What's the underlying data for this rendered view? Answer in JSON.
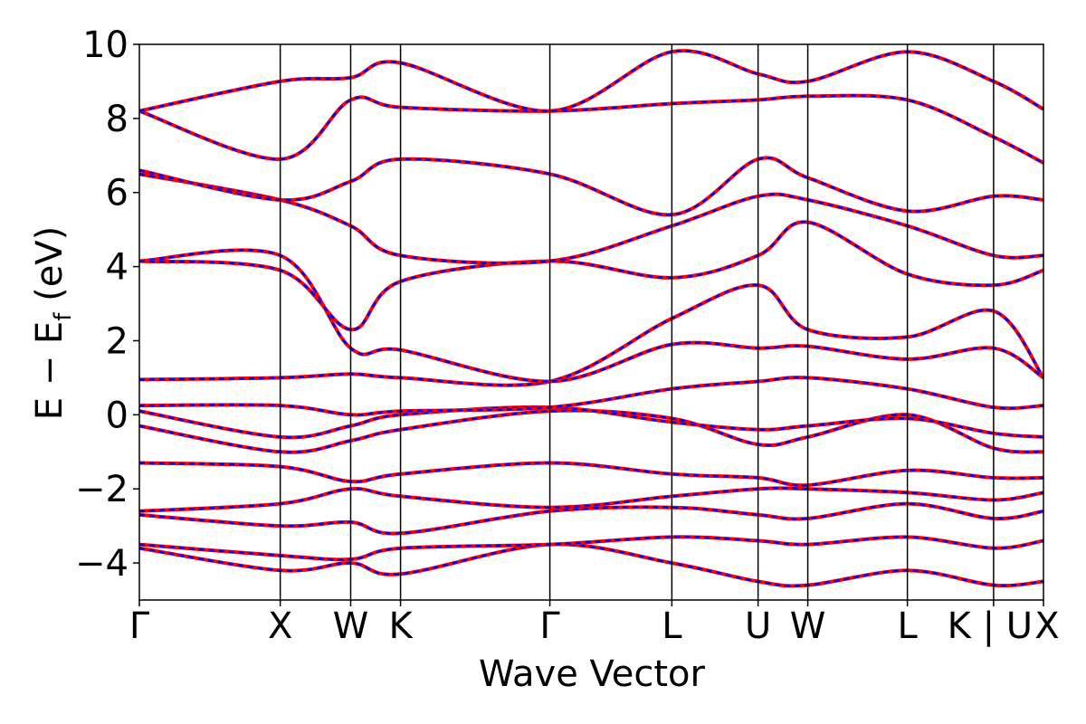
{
  "chart_data": {
    "type": "line",
    "title": "",
    "xlabel": "Wave Vector",
    "ylabel_parts": {
      "main": "E − E",
      "sub": "f",
      "unit": " (eV)"
    },
    "ylim": [
      -5,
      10
    ],
    "yticks": [
      -4,
      -2,
      0,
      2,
      4,
      6,
      8,
      10
    ],
    "ytick_labels": [
      "−4",
      "−2",
      "0",
      "2",
      "4",
      "6",
      "8",
      "10"
    ],
    "kpath": [
      {
        "label": "Γ",
        "x": 0.0
      },
      {
        "label": "X",
        "x": 1.0
      },
      {
        "label": "W",
        "x": 1.5
      },
      {
        "label": "K",
        "x": 1.854
      },
      {
        "label": "Γ",
        "x": 2.914
      },
      {
        "label": "L",
        "x": 3.78
      },
      {
        "label": "U",
        "x": 4.392
      },
      {
        "label": "W",
        "x": 4.745
      },
      {
        "label": "L",
        "x": 5.452
      },
      {
        "label": "K | U",
        "x": 6.064
      },
      {
        "label": "X",
        "x": 6.418
      }
    ],
    "xlim": [
      0.0,
      6.418
    ],
    "grid": false,
    "legend": "none",
    "colors": {
      "solid": "#ff0000",
      "dashed": "#0000ff",
      "axis": "#000000"
    },
    "series": [
      {
        "style": "red-solid + blue-dashed",
        "points": [
          [
            0,
            -3.6
          ],
          [
            1,
            -4.2
          ],
          [
            1.5,
            -4.0
          ],
          [
            1.854,
            -4.3
          ],
          [
            2.914,
            -3.5
          ],
          [
            3.78,
            -4.0
          ],
          [
            4.392,
            -4.5
          ],
          [
            4.745,
            -4.6
          ],
          [
            5.452,
            -4.2
          ],
          [
            6.064,
            -4.6
          ],
          [
            6.418,
            -4.5
          ]
        ]
      },
      {
        "style": "red-solid + blue-dashed",
        "points": [
          [
            0,
            -3.5
          ],
          [
            1,
            -3.8
          ],
          [
            1.5,
            -3.9
          ],
          [
            1.854,
            -3.6
          ],
          [
            2.914,
            -3.5
          ],
          [
            3.78,
            -3.3
          ],
          [
            4.392,
            -3.4
          ],
          [
            4.745,
            -3.5
          ],
          [
            5.452,
            -3.3
          ],
          [
            6.064,
            -3.6
          ],
          [
            6.418,
            -3.4
          ]
        ]
      },
      {
        "style": "red-solid + blue-dashed",
        "points": [
          [
            0,
            -2.7
          ],
          [
            1,
            -3.0
          ],
          [
            1.5,
            -2.9
          ],
          [
            1.854,
            -3.2
          ],
          [
            2.914,
            -2.6
          ],
          [
            3.78,
            -2.5
          ],
          [
            4.392,
            -2.7
          ],
          [
            4.745,
            -2.8
          ],
          [
            5.452,
            -2.4
          ],
          [
            6.064,
            -2.8
          ],
          [
            6.418,
            -2.6
          ]
        ]
      },
      {
        "style": "red-solid + blue-dashed",
        "points": [
          [
            0,
            -2.6
          ],
          [
            1,
            -2.4
          ],
          [
            1.5,
            -2.0
          ],
          [
            1.854,
            -2.2
          ],
          [
            2.914,
            -2.5
          ],
          [
            3.78,
            -2.2
          ],
          [
            4.392,
            -2.0
          ],
          [
            4.745,
            -2.0
          ],
          [
            5.452,
            -2.1
          ],
          [
            6.064,
            -2.3
          ],
          [
            6.418,
            -2.1
          ]
        ]
      },
      {
        "style": "red-solid + blue-dashed",
        "points": [
          [
            0,
            -1.3
          ],
          [
            1,
            -1.4
          ],
          [
            1.5,
            -1.8
          ],
          [
            1.854,
            -1.6
          ],
          [
            2.914,
            -1.3
          ],
          [
            3.78,
            -1.6
          ],
          [
            4.392,
            -1.7
          ],
          [
            4.745,
            -1.9
          ],
          [
            5.452,
            -1.5
          ],
          [
            6.064,
            -1.7
          ],
          [
            6.418,
            -1.7
          ]
        ]
      },
      {
        "style": "red-solid + blue-dashed",
        "points": [
          [
            0,
            -0.3
          ],
          [
            1,
            -1.0
          ],
          [
            1.5,
            -0.7
          ],
          [
            1.854,
            -0.4
          ],
          [
            2.914,
            0.1
          ],
          [
            3.78,
            -0.1
          ],
          [
            4.392,
            -0.8
          ],
          [
            4.745,
            -0.6
          ],
          [
            5.452,
            0.0
          ],
          [
            6.064,
            -0.9
          ],
          [
            6.418,
            -1.0
          ]
        ]
      },
      {
        "style": "red-solid + blue-dashed",
        "points": [
          [
            0,
            0.1
          ],
          [
            1,
            -0.6
          ],
          [
            1.5,
            -0.3
          ],
          [
            1.854,
            0.0
          ],
          [
            2.914,
            0.2
          ],
          [
            3.78,
            -0.2
          ],
          [
            4.392,
            -0.4
          ],
          [
            4.745,
            -0.3
          ],
          [
            5.452,
            -0.1
          ],
          [
            6.064,
            -0.5
          ],
          [
            6.418,
            -0.6
          ]
        ]
      },
      {
        "style": "red-solid + blue-dashed",
        "points": [
          [
            0,
            0.25
          ],
          [
            1,
            0.25
          ],
          [
            1.5,
            0.0
          ],
          [
            1.854,
            0.1
          ],
          [
            2.914,
            0.2
          ],
          [
            3.78,
            0.7
          ],
          [
            4.392,
            0.9
          ],
          [
            4.745,
            1.0
          ],
          [
            5.452,
            0.7
          ],
          [
            6.064,
            0.2
          ],
          [
            6.418,
            0.25
          ]
        ]
      },
      {
        "style": "red-solid + blue-dashed",
        "points": [
          [
            0,
            0.95
          ],
          [
            1,
            1.0
          ],
          [
            1.5,
            1.1
          ],
          [
            1.854,
            1.0
          ],
          [
            2.914,
            0.9
          ],
          [
            3.78,
            2.6
          ],
          [
            4.392,
            3.5
          ],
          [
            4.745,
            2.3
          ],
          [
            5.452,
            2.1
          ],
          [
            6.064,
            2.8
          ],
          [
            6.418,
            1.0
          ]
        ]
      },
      {
        "style": "red-solid + blue-dashed",
        "points": [
          [
            0,
            4.15
          ],
          [
            1,
            4.3
          ],
          [
            1.5,
            1.8
          ],
          [
            1.854,
            1.75
          ],
          [
            2.914,
            0.9
          ],
          [
            3.78,
            1.9
          ],
          [
            4.392,
            1.8
          ],
          [
            4.745,
            1.85
          ],
          [
            5.452,
            1.5
          ],
          [
            6.064,
            1.8
          ],
          [
            6.418,
            1.0
          ]
        ]
      },
      {
        "style": "red-solid + blue-dashed",
        "points": [
          [
            0,
            4.15
          ],
          [
            1,
            3.9
          ],
          [
            1.5,
            2.3
          ],
          [
            1.854,
            3.6
          ],
          [
            2.914,
            4.15
          ],
          [
            3.78,
            3.7
          ],
          [
            4.392,
            4.3
          ],
          [
            4.745,
            5.2
          ],
          [
            5.452,
            3.8
          ],
          [
            6.064,
            3.5
          ],
          [
            6.418,
            3.9
          ]
        ]
      },
      {
        "style": "red-solid + blue-dashed",
        "points": [
          [
            0,
            6.5
          ],
          [
            1,
            5.8
          ],
          [
            1.5,
            5.1
          ],
          [
            1.854,
            4.3
          ],
          [
            2.914,
            4.15
          ],
          [
            3.78,
            5.1
          ],
          [
            4.392,
            5.9
          ],
          [
            4.745,
            5.8
          ],
          [
            5.452,
            5.1
          ],
          [
            6.064,
            4.3
          ],
          [
            6.418,
            4.3
          ]
        ]
      },
      {
        "style": "red-solid + blue-dashed",
        "points": [
          [
            0,
            6.6
          ],
          [
            1,
            5.8
          ],
          [
            1.5,
            6.3
          ],
          [
            1.854,
            6.9
          ],
          [
            2.914,
            6.5
          ],
          [
            3.78,
            5.4
          ],
          [
            4.392,
            6.9
          ],
          [
            4.745,
            6.4
          ],
          [
            5.452,
            5.5
          ],
          [
            6.064,
            5.9
          ],
          [
            6.418,
            5.8
          ]
        ]
      },
      {
        "style": "red-solid + blue-dashed",
        "points": [
          [
            0,
            8.2
          ],
          [
            1,
            6.9
          ],
          [
            1.5,
            8.5
          ],
          [
            1.854,
            8.3
          ],
          [
            2.914,
            8.2
          ],
          [
            3.78,
            8.4
          ],
          [
            4.392,
            8.5
          ],
          [
            4.745,
            8.6
          ],
          [
            5.452,
            8.5
          ],
          [
            6.064,
            7.5
          ],
          [
            6.418,
            6.8
          ]
        ]
      },
      {
        "style": "red-solid + blue-dashed",
        "points": [
          [
            0,
            8.2
          ],
          [
            1,
            9.0
          ],
          [
            1.5,
            9.1
          ],
          [
            1.854,
            9.5
          ],
          [
            2.914,
            8.2
          ],
          [
            3.78,
            9.8
          ],
          [
            4.392,
            9.2
          ],
          [
            4.745,
            9.0
          ],
          [
            5.452,
            9.8
          ],
          [
            6.064,
            9.0
          ],
          [
            6.418,
            8.25
          ]
        ]
      }
    ]
  }
}
